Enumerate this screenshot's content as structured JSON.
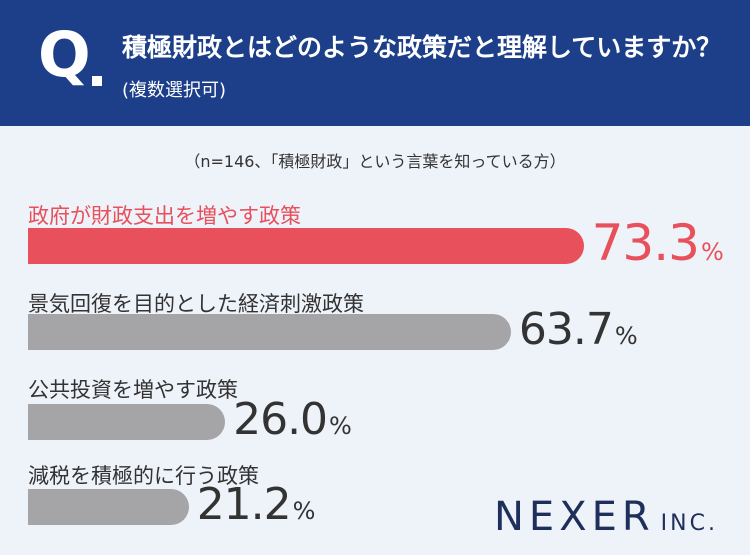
{
  "header": {
    "q_mark": "Q",
    "question_main": "積極財政とはどのような政策だと理解していますか？",
    "question_sub": "(複数選択可)"
  },
  "note": "（n=146、「積極財政」という言葉を知っている方）",
  "chart_data": {
    "type": "bar",
    "orientation": "horizontal",
    "categories": [
      "政府が財政支出を増やす政策",
      "景気回復を目的とした経済刺激政策",
      "公共投資を増やす政策",
      "減税を積極的に行う政策"
    ],
    "values": [
      73.3,
      63.7,
      26.0,
      21.2
    ],
    "value_labels": [
      "73.3",
      "63.7",
      "26.0",
      "21.2"
    ],
    "unit": "%",
    "highlight_index": 0,
    "colors": {
      "highlight": "#e8505b",
      "default": "#a5a5a7"
    },
    "xlim": [
      0,
      100
    ]
  },
  "logo": {
    "main": "NEXER",
    "suffix": "INC."
  },
  "colors": {
    "header_bg": "#1d3f8a",
    "background": "#eef2f9",
    "text": "#333333"
  }
}
